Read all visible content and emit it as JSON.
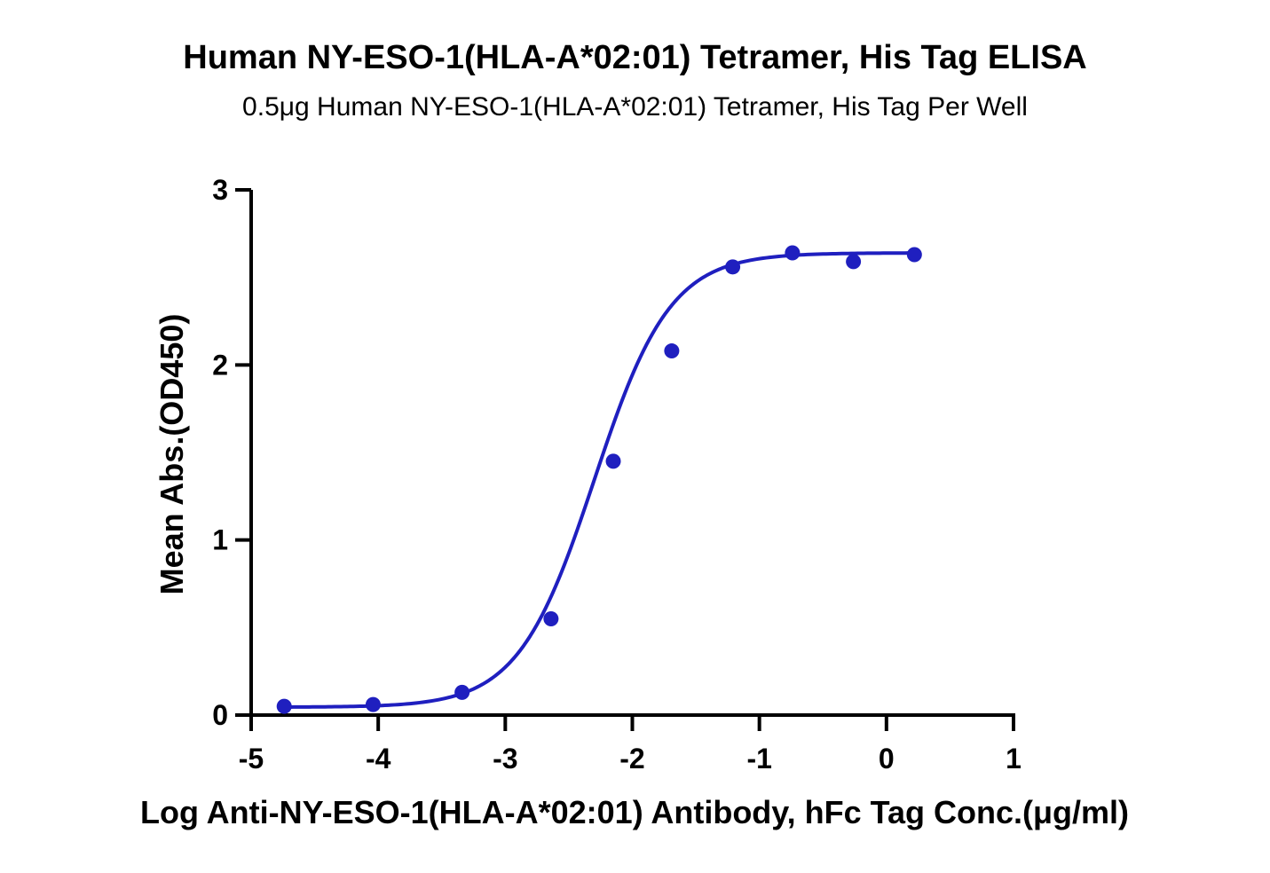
{
  "chart_data": {
    "type": "scatter",
    "title": "Human NY-ESO-1(HLA-A*02:01) Tetramer, His Tag ELISA",
    "subtitle": "0.5μg Human NY-ESO-1(HLA-A*02:01) Tetramer, His Tag Per Well",
    "xlabel": "Log Anti-NY-ESO-1(HLA-A*02:01) Antibody, hFc Tag Conc.(μg/ml)",
    "ylabel": "Mean Abs.(OD450)",
    "xlim": [
      -5,
      1
    ],
    "ylim": [
      0,
      3
    ],
    "x_ticks": [
      "-5",
      "-4",
      "-3",
      "-2",
      "-1",
      "0",
      "1"
    ],
    "y_ticks": [
      "0",
      "1",
      "2",
      "3"
    ],
    "grid": false,
    "series": [
      {
        "color": "#1f1fbf",
        "points": [
          {
            "x": -4.74,
            "y": 0.05
          },
          {
            "x": -4.04,
            "y": 0.06
          },
          {
            "x": -3.34,
            "y": 0.13
          },
          {
            "x": -2.64,
            "y": 0.55
          },
          {
            "x": -2.15,
            "y": 1.45
          },
          {
            "x": -1.69,
            "y": 2.08
          },
          {
            "x": -1.21,
            "y": 2.56
          },
          {
            "x": -0.74,
            "y": 2.64
          },
          {
            "x": -0.26,
            "y": 2.59
          },
          {
            "x": 0.22,
            "y": 2.63
          }
        ],
        "fit": {
          "model": "4PL",
          "bottom": 0.045,
          "top": 2.64,
          "logEC50": -2.3,
          "hill": 1.45
        }
      }
    ]
  }
}
